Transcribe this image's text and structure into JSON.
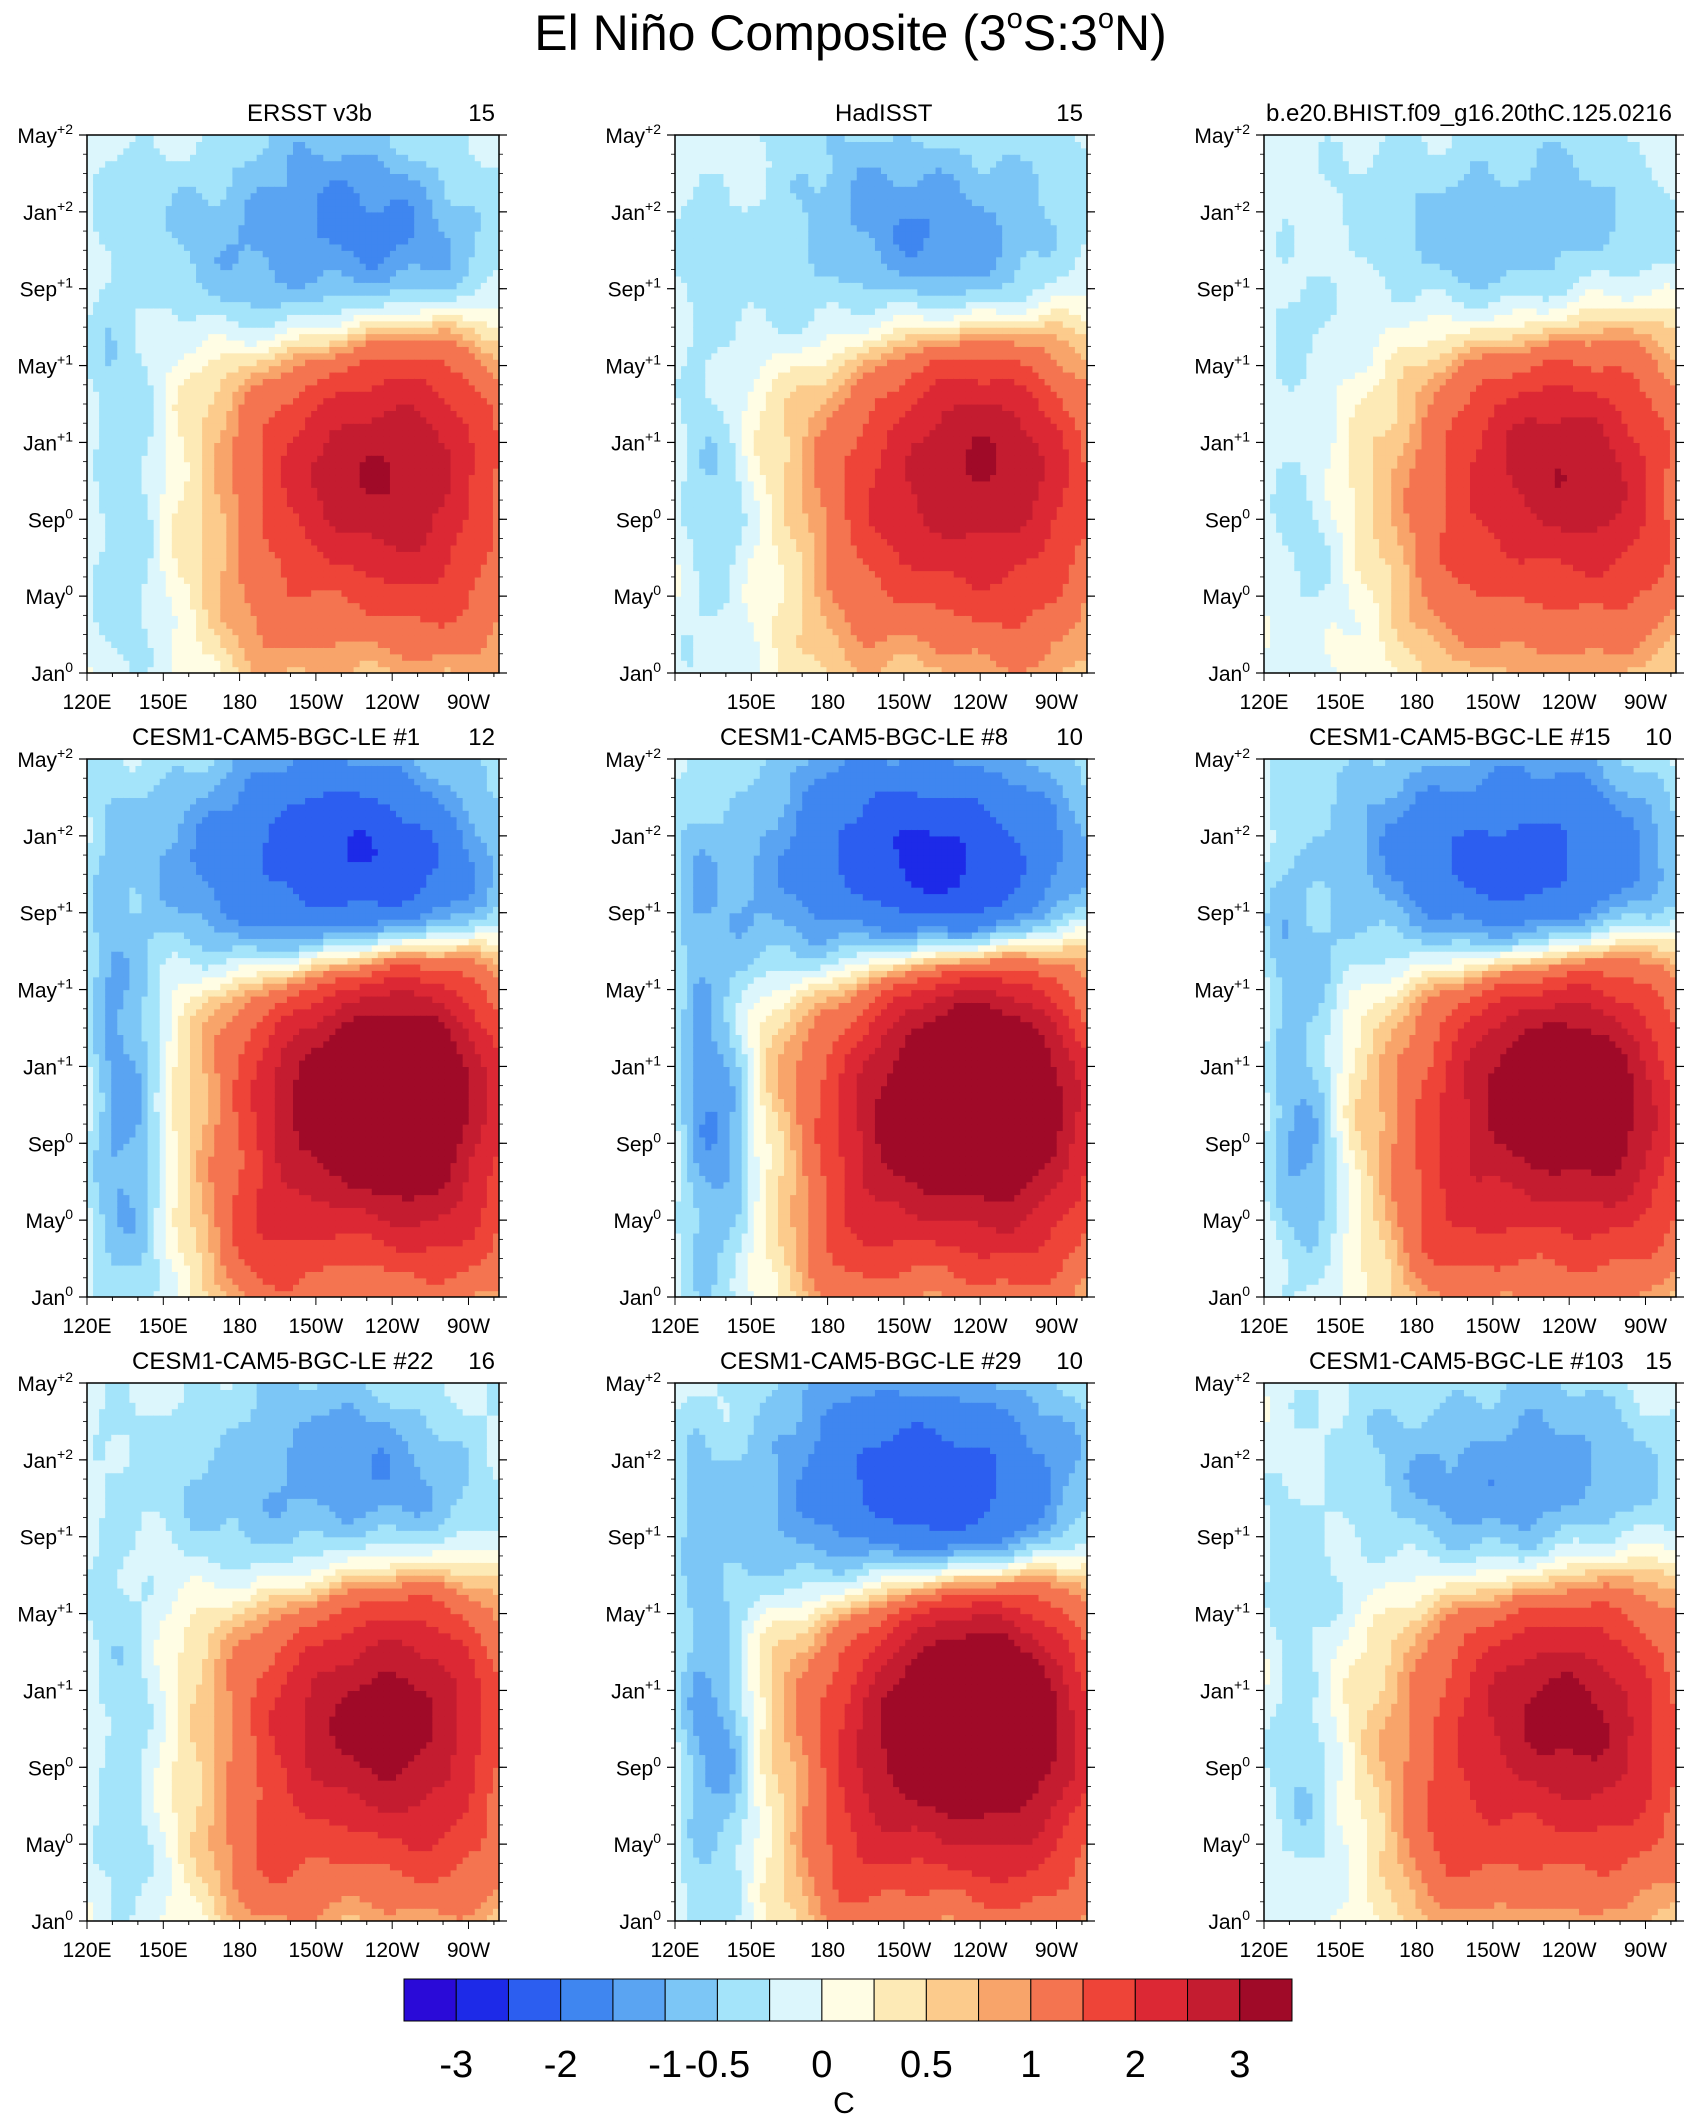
{
  "figure": {
    "title_parts": [
      "El Niño Composite (3",
      "o",
      "S:3",
      "o",
      "N)"
    ],
    "colorbar": {
      "unit": "C",
      "labels": [
        "-3",
        "-2",
        "-1",
        "-0.5",
        "0",
        "0.5",
        "1",
        "2",
        "3"
      ],
      "colors": [
        "#2a0ad8",
        "#1d2ae8",
        "#2c5ef0",
        "#3f86f0",
        "#5aa4f2",
        "#7cc6f6",
        "#a4e4fa",
        "#dcf6fc",
        "#fffde4",
        "#fdeab6",
        "#fccb8c",
        "#f8a46a",
        "#f47450",
        "#ee4438",
        "#dc2834",
        "#c41c30",
        "#a00a28"
      ]
    }
  },
  "chart_data": [
    {
      "type": "heatmap",
      "panel": "ERSST v3b",
      "count": "15",
      "x_ticks": [
        "120E",
        "150E",
        "180",
        "150W",
        "120W",
        "90W"
      ],
      "y_ticks": [
        "Jan0",
        "May0",
        "Sep0",
        "Jan+1",
        "May+1",
        "Sep+1",
        "Jan+2",
        "May+2"
      ],
      "peak_anomaly_C": 2.2,
      "peak_time": "Nov0–Jan+1",
      "peak_lon": "160W–100W",
      "cold_min_C": -0.9
    },
    {
      "type": "heatmap",
      "panel": "HadISST",
      "count": "15",
      "x_ticks": [
        "150E",
        "180",
        "150W",
        "120W",
        "90W"
      ],
      "y_ticks": [
        "Jan0",
        "May0",
        "Sep0",
        "Jan+1",
        "May+1",
        "Sep+1",
        "Jan+2",
        "May+2"
      ],
      "peak_anomaly_C": 2.2,
      "peak_time": "Nov0–Jan+1",
      "peak_lon": "165W–95W",
      "cold_min_C": -0.8
    },
    {
      "type": "heatmap",
      "panel": "b.e20.BHIST.f09_g16.20thC.125.02",
      "count": "16",
      "x_ticks": [
        "120E",
        "150E",
        "180",
        "150W",
        "120W",
        "90W"
      ],
      "y_ticks": [
        "Jan0",
        "May0",
        "Sep0",
        "Jan+1",
        "May+1",
        "Sep+1",
        "Jan+2",
        "May+2"
      ],
      "peak_anomaly_C": 2.1,
      "peak_time": "Nov0–Jan+1",
      "peak_lon": "170W–85W",
      "cold_min_C": -0.6
    },
    {
      "type": "heatmap",
      "panel": "CESM1-CAM5-BGC-LE #1",
      "count": "12",
      "x_ticks": [
        "120E",
        "150E",
        "180",
        "150W",
        "120W",
        "90W"
      ],
      "y_ticks": [
        "Jan0",
        "May0",
        "Sep0",
        "Jan+1",
        "May+1",
        "Sep+1",
        "Jan+2",
        "May+2"
      ],
      "peak_anomaly_C": 3.1,
      "peak_time": "Nov0–Jan+1",
      "peak_lon": "175W–100W",
      "cold_min_C": -1.6
    },
    {
      "type": "heatmap",
      "panel": "CESM1-CAM5-BGC-LE #8",
      "count": "10",
      "x_ticks": [
        "120E",
        "150E",
        "180",
        "150W",
        "120W",
        "90W"
      ],
      "y_ticks": [
        "Jan0",
        "May0",
        "Sep0",
        "Jan+1",
        "May+1",
        "Sep+1",
        "Jan+2",
        "May+2"
      ],
      "peak_anomaly_C": 3.2,
      "peak_time": "Nov0–Jan+1",
      "peak_lon": "175W–100W",
      "cold_min_C": -1.7
    },
    {
      "type": "heatmap",
      "panel": "CESM1-CAM5-BGC-LE #15",
      "count": "10",
      "x_ticks": [
        "120E",
        "150E",
        "180",
        "150W",
        "120W",
        "90W"
      ],
      "y_ticks": [
        "Jan0",
        "May0",
        "Sep0",
        "Jan+1",
        "May+1",
        "Sep+1",
        "Jan+2",
        "May+2"
      ],
      "peak_anomaly_C": 2.8,
      "peak_time": "Nov0–Jan+1",
      "peak_lon": "175W–100W",
      "cold_min_C": -1.4
    },
    {
      "type": "heatmap",
      "panel": "CESM1-CAM5-BGC-LE #22",
      "count": "16",
      "x_ticks": [
        "120E",
        "150E",
        "180",
        "150W",
        "120W",
        "90W"
      ],
      "y_ticks": [
        "Jan0",
        "May0",
        "Sep0",
        "Jan+1",
        "May+1",
        "Sep+1",
        "Jan+2",
        "May+2"
      ],
      "peak_anomaly_C": 2.4,
      "peak_time": "Nov0–Jan+1",
      "peak_lon": "175W–100W",
      "cold_min_C": -0.8
    },
    {
      "type": "heatmap",
      "panel": "CESM1-CAM5-BGC-LE #29",
      "count": "10",
      "x_ticks": [
        "120E",
        "150E",
        "180",
        "150W",
        "120W",
        "90W"
      ],
      "y_ticks": [
        "Jan0",
        "May0",
        "Sep0",
        "Jan+1",
        "May+1",
        "Sep+1",
        "Jan+2",
        "May+2"
      ],
      "peak_anomaly_C": 3.1,
      "peak_time": "Nov0–Jan+1",
      "peak_lon": "175W–100W",
      "cold_min_C": -1.5
    },
    {
      "type": "heatmap",
      "panel": "CESM1-CAM5-BGC-LE #103",
      "count": "15",
      "x_ticks": [
        "120E",
        "150E",
        "180",
        "150W",
        "120W",
        "90W"
      ],
      "y_ticks": [
        "Jan0",
        "May0",
        "Sep0",
        "Jan+1",
        "May+1",
        "Sep+1",
        "Jan+2",
        "May+2"
      ],
      "peak_anomaly_C": 2.3,
      "peak_time": "Nov0–Jan+1",
      "peak_lon": "175W–95W",
      "cold_min_C": -0.8
    }
  ]
}
